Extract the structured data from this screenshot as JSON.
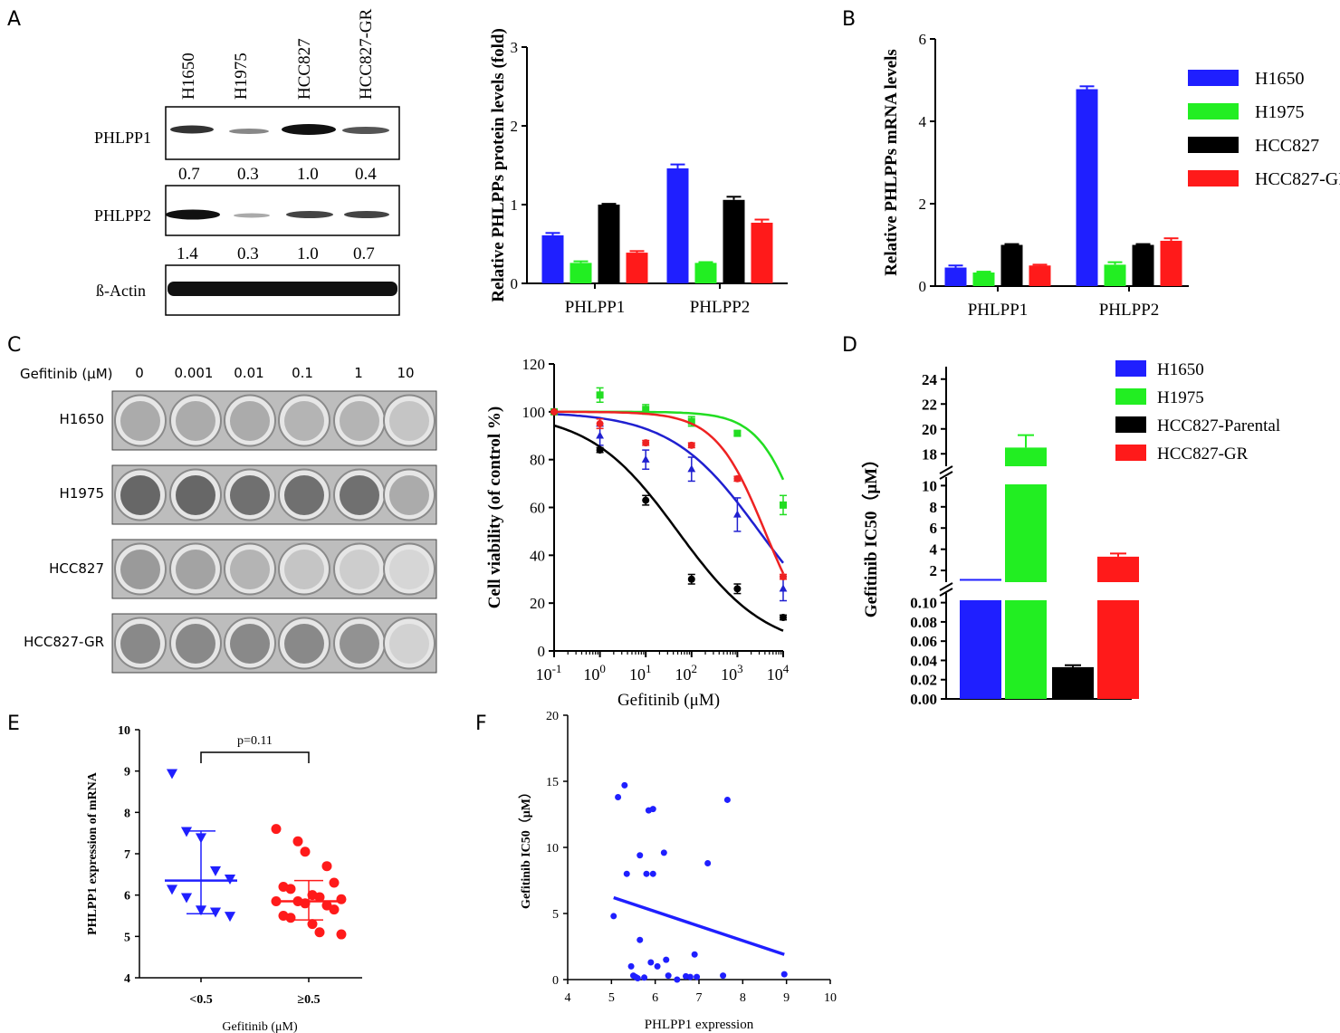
{
  "panels": {
    "A": "A",
    "B": "B",
    "C": "C",
    "D": "D",
    "E": "E",
    "F": "F"
  },
  "blot": {
    "lanes": [
      "H1650",
      "H1975",
      "HCC827",
      "HCC827-GR"
    ],
    "rows": [
      {
        "label": "PHLPP1",
        "quant": [
          "0.7",
          "0.3",
          "1.0",
          "0.4"
        ]
      },
      {
        "label": "PHLPP2",
        "quant": [
          "1.4",
          "0.3",
          "1.0",
          "0.7"
        ]
      },
      {
        "label": "ß-Actin",
        "quant": []
      }
    ]
  },
  "colony": {
    "header_label": "Gefitinib (μM)",
    "doses": [
      "0",
      "0.001",
      "0.01",
      "0.1",
      "1",
      "10"
    ],
    "rows": [
      "H1650",
      "H1975",
      "HCC827",
      "HCC827-GR"
    ]
  },
  "colors": {
    "blue": "#1f1fff",
    "green": "#22ee22",
    "black": "#000000",
    "red": "#ff1a1a",
    "darkblue": "#2020d0"
  },
  "chart_data": [
    {
      "id": "A-bar",
      "type": "bar",
      "categories": [
        "PHLPP1",
        "PHLPP2"
      ],
      "series": [
        {
          "name": "H1650",
          "color": "#1f1fff",
          "values": [
            0.61,
            1.46
          ],
          "err": [
            0.03,
            0.05
          ]
        },
        {
          "name": "H1975",
          "color": "#22ee22",
          "values": [
            0.26,
            0.26
          ],
          "err": [
            0.02,
            0.01
          ]
        },
        {
          "name": "HCC827",
          "color": "#000000",
          "values": [
            1.0,
            1.06
          ],
          "err": [
            0.01,
            0.04
          ]
        },
        {
          "name": "HCC827-GR",
          "color": "#ff1a1a",
          "values": [
            0.39,
            0.77
          ],
          "err": [
            0.02,
            0.04
          ]
        }
      ],
      "ylabel": "Relative PHLPPs protein levels (fold)",
      "ylim": [
        0,
        3
      ],
      "yticks": [
        "0",
        "1",
        "2",
        "3"
      ]
    },
    {
      "id": "B-bar",
      "type": "bar",
      "categories": [
        "PHLPP1",
        "PHLPP2"
      ],
      "series": [
        {
          "name": "H1650",
          "color": "#1f1fff",
          "values": [
            0.45,
            4.78
          ],
          "err": [
            0.05,
            0.07
          ]
        },
        {
          "name": "H1975",
          "color": "#22ee22",
          "values": [
            0.33,
            0.52
          ],
          "err": [
            0.02,
            0.06
          ]
        },
        {
          "name": "HCC827",
          "color": "#000000",
          "values": [
            1.0,
            1.0
          ],
          "err": [
            0.02,
            0.02
          ]
        },
        {
          "name": "HCC827-GR",
          "color": "#ff1a1a",
          "values": [
            0.5,
            1.1
          ],
          "err": [
            0.02,
            0.06
          ]
        }
      ],
      "ylabel": "Relative PHLPPs mRNA levels",
      "ylim": [
        0,
        6
      ],
      "yticks": [
        "0",
        "2",
        "4",
        "6"
      ],
      "legend": [
        "H1650",
        "H1975",
        "HCC827",
        "HCC827-GR"
      ]
    },
    {
      "id": "C-line",
      "type": "line",
      "xlabel": "Gefitinib (μM)",
      "ylabel": "Cell viability (of control %)",
      "xscale": "log",
      "xlim": [
        0.1,
        10000
      ],
      "ylim": [
        0,
        120
      ],
      "yticks": [
        "0",
        "20",
        "40",
        "60",
        "80",
        "100",
        "120"
      ],
      "xtick_base": [
        "10",
        "10",
        "10",
        "10",
        "10",
        "10"
      ],
      "xtick_exp": [
        "-1",
        "0",
        "1",
        "2",
        "3",
        "4"
      ],
      "series": [
        {
          "name": "H1650",
          "color": "#2020d0",
          "marker": "triangle",
          "x": [
            0.1,
            1,
            10,
            100,
            1000,
            10000
          ],
          "y": [
            100,
            90,
            80,
            76,
            57,
            26
          ],
          "err": [
            0,
            4,
            4,
            5,
            7,
            5
          ],
          "fit": {
            "top": 100,
            "bottom": 0,
            "ic50": 3000,
            "hill": 0.45
          }
        },
        {
          "name": "H1975",
          "color": "#22dd22",
          "marker": "square",
          "x": [
            0.1,
            1,
            10,
            100,
            1000,
            10000
          ],
          "y": [
            100,
            107,
            101,
            96,
            91,
            61
          ],
          "err": [
            0,
            3,
            2,
            2,
            1,
            4
          ],
          "fit": {
            "top": 100,
            "bottom": 0,
            "ic50": 28000,
            "hill": 0.9
          }
        },
        {
          "name": "HCC827-Parental",
          "color": "#000000",
          "marker": "circle",
          "x": [
            0.1,
            1,
            10,
            100,
            1000,
            10000
          ],
          "y": [
            100,
            84,
            63,
            30,
            26,
            14
          ],
          "err": [
            0,
            1,
            2,
            2,
            2,
            1
          ],
          "fit": {
            "top": 100,
            "bottom": 0,
            "ic50": 50,
            "hill": 0.45
          }
        },
        {
          "name": "HCC827-GR",
          "color": "#ee2222",
          "marker": "circle",
          "x": [
            0.1,
            1,
            10,
            100,
            1000,
            10000
          ],
          "y": [
            100,
            95,
            87,
            86,
            72,
            31
          ],
          "err": [
            0,
            2,
            1,
            1,
            1,
            1
          ],
          "fit": {
            "top": 100,
            "bottom": 0,
            "ic50": 4000,
            "hill": 0.8
          }
        }
      ]
    },
    {
      "id": "D-bar",
      "type": "bar",
      "ylabel": "Gefitinib IC50（μM）",
      "series": [
        {
          "name": "H1650",
          "color": "#1f1fff",
          "value": 0.11,
          "err": 0.0
        },
        {
          "name": "H1975",
          "color": "#22ee22",
          "value": 18.5,
          "err": 1.0
        },
        {
          "name": "HCC827-Parental",
          "color": "#000000",
          "value": 0.033,
          "err": 0.002
        },
        {
          "name": "HCC827-GR",
          "color": "#ff1a1a",
          "value": 3.3,
          "err": 0.3
        }
      ],
      "segments": {
        "low": [
          0,
          0.1
        ],
        "mid": [
          0,
          10
        ],
        "high": [
          17,
          25
        ]
      },
      "yticks_low": [
        "0.00",
        "0.02",
        "0.04",
        "0.06",
        "0.08",
        "0.10"
      ],
      "yticks_mid": [
        "2",
        "4",
        "6",
        "8",
        "10"
      ],
      "yticks_high": [
        "18",
        "20",
        "22",
        "24"
      ],
      "legend": [
        "H1650",
        "H1975",
        "HCC827-Parental",
        "HCC827-GR"
      ]
    },
    {
      "id": "E-scatter",
      "type": "scatter",
      "xlabel": "Gefitinib (μM)",
      "ylabel": "PHLPP1 expression of mRNA",
      "categories": [
        "<0.5",
        "≥0.5"
      ],
      "ylim": [
        4,
        10
      ],
      "yticks": [
        "4",
        "5",
        "6",
        "7",
        "8",
        "9",
        "10"
      ],
      "pvalue": "p=0.11",
      "groups": [
        {
          "name": "<0.5",
          "color": "#1f1fff",
          "marker": "triangle-down",
          "values": [
            8.95,
            7.55,
            7.4,
            6.6,
            6.4,
            6.15,
            5.95,
            5.65,
            5.6,
            5.5
          ],
          "mean": 6.35,
          "sd_low": 5.55,
          "sd_high": 7.55
        },
        {
          "name": "≥0.5",
          "color": "#ff1a1a",
          "marker": "circle",
          "values": [
            7.6,
            7.3,
            7.05,
            6.7,
            6.3,
            6.2,
            6.15,
            6.0,
            5.95,
            5.9,
            5.85,
            5.85,
            5.8,
            5.75,
            5.65,
            5.5,
            5.45,
            5.3,
            5.1,
            5.05
          ],
          "mean": 5.85,
          "sd_low": 5.4,
          "sd_high": 6.35
        }
      ]
    },
    {
      "id": "F-scatter",
      "type": "scatter",
      "xlabel": "PHLPP1 expression",
      "ylabel": "Gefitinib IC50（μM）",
      "xlim": [
        4,
        10
      ],
      "ylim": [
        0,
        20
      ],
      "xticks": [
        "4",
        "5",
        "6",
        "7",
        "8",
        "9",
        "10"
      ],
      "yticks": [
        "0",
        "5",
        "10",
        "15",
        "20"
      ],
      "color": "#1f1fff",
      "points": [
        [
          5.05,
          4.8
        ],
        [
          5.15,
          13.8
        ],
        [
          5.3,
          14.7
        ],
        [
          5.35,
          8.0
        ],
        [
          5.45,
          1.0
        ],
        [
          5.5,
          0.3
        ],
        [
          5.6,
          0.1
        ],
        [
          5.65,
          3.0
        ],
        [
          5.65,
          9.4
        ],
        [
          5.75,
          0.15
        ],
        [
          5.8,
          8.0
        ],
        [
          5.85,
          12.8
        ],
        [
          5.9,
          1.3
        ],
        [
          5.95,
          8.0
        ],
        [
          5.95,
          12.9
        ],
        [
          6.05,
          1.0
        ],
        [
          6.2,
          9.6
        ],
        [
          6.25,
          1.5
        ],
        [
          6.3,
          0.3
        ],
        [
          6.5,
          0.0
        ],
        [
          6.8,
          0.2
        ],
        [
          6.9,
          1.9
        ],
        [
          6.95,
          0.2
        ],
        [
          7.2,
          8.8
        ],
        [
          7.55,
          0.3
        ],
        [
          7.65,
          13.6
        ],
        [
          8.95,
          0.4
        ],
        [
          5.55,
          0.2
        ],
        [
          6.7,
          0.25
        ]
      ],
      "fit": {
        "x": [
          5.05,
          8.95
        ],
        "y": [
          6.2,
          1.9
        ]
      }
    }
  ]
}
